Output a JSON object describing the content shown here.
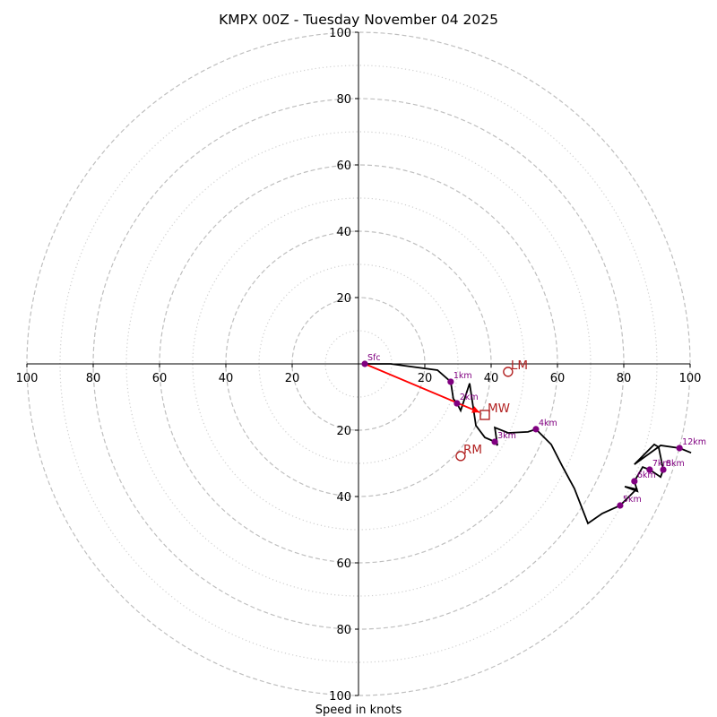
{
  "chart_data": {
    "type": "line",
    "subtype": "hodograph",
    "title": "KMPX 00Z - Tuesday November 04 2025",
    "xlabel": "Speed in knots",
    "ylabel": "",
    "rmax": 100,
    "rings_major": [
      20,
      40,
      60,
      80,
      100
    ],
    "rings_minor": [
      10,
      30,
      50,
      70,
      90
    ],
    "x_tick_labels": [
      "100",
      "80",
      "60",
      "40",
      "20",
      "20",
      "40",
      "60",
      "80",
      "100"
    ],
    "x_tick_values": [
      -100,
      -80,
      -60,
      -40,
      -20,
      20,
      40,
      60,
      80,
      100
    ],
    "y_tick_labels": [
      "100",
      "80",
      "60",
      "40",
      "20",
      "20",
      "40",
      "60",
      "80",
      "100"
    ],
    "y_tick_values": [
      100,
      80,
      60,
      40,
      20,
      -20,
      -40,
      -60,
      -80,
      -100
    ],
    "grid": true,
    "wind_profile": {
      "name": "Hodograph trace",
      "color": "#000000",
      "u": [
        1.9,
        9.7,
        23.8,
        27.8,
        28.6,
        29.7,
        30.8,
        33.5,
        35.4,
        38.1,
        41.1,
        41.9,
        41.1,
        45.1,
        51.1,
        53.5,
        58.1,
        61.6,
        65.1,
        69.2,
        73.5,
        78.9,
        83.8,
        80.3,
        84.1,
        83.2,
        85.7,
        87.8,
        91.1,
        91.9,
        90.5,
        89.2,
        83.2,
        91.1,
        96.8,
        100.3
      ],
      "v": [
        0.0,
        0.0,
        -1.9,
        -5.4,
        -10.5,
        -11.9,
        -14.1,
        -5.9,
        -18.6,
        -22.2,
        -23.5,
        -24.6,
        -19.2,
        -20.8,
        -20.5,
        -19.7,
        -24.3,
        -31.1,
        -37.6,
        -48.1,
        -45.1,
        -42.7,
        -37.8,
        -37.0,
        -38.4,
        -35.4,
        -31.1,
        -31.9,
        -34.1,
        -31.9,
        -25.1,
        -24.3,
        -30.3,
        -24.6,
        -25.4,
        -26.8
      ]
    },
    "height_markers": [
      {
        "label": "Sfc",
        "u": 1.9,
        "v": 0.0
      },
      {
        "label": "1km",
        "u": 27.8,
        "v": -5.4
      },
      {
        "label": "2km",
        "u": 29.7,
        "v": -11.9
      },
      {
        "label": "3km",
        "u": 41.1,
        "v": -23.5
      },
      {
        "label": "4km",
        "u": 53.5,
        "v": -19.7
      },
      {
        "label": "5km",
        "u": 78.9,
        "v": -42.7
      },
      {
        "label": "6km",
        "u": 83.2,
        "v": -35.4
      },
      {
        "label": "7km",
        "u": 87.8,
        "v": -31.9
      },
      {
        "label": "8km",
        "u": 91.9,
        "v": -31.9
      },
      {
        "label": "12km",
        "u": 96.8,
        "v": -25.4
      }
    ],
    "storm_motion": [
      {
        "label": "LM",
        "u": 45.1,
        "v": -2.4,
        "marker": "circle"
      },
      {
        "label": "MW",
        "u": 38.1,
        "v": -15.4,
        "marker": "square"
      },
      {
        "label": "RM",
        "u": 30.8,
        "v": -27.8,
        "marker": "circle"
      }
    ],
    "shear_vector": {
      "from": "Sfc",
      "to": "MW",
      "u0": 1.9,
      "v0": 0.0,
      "u1": 36.5,
      "v1": -14.6
    },
    "colors": {
      "trace": "#000000",
      "markers": "#800080",
      "storm_motion": "#b22222",
      "shear_vector": "#ff0000",
      "grid": "#bfbfbf"
    }
  }
}
